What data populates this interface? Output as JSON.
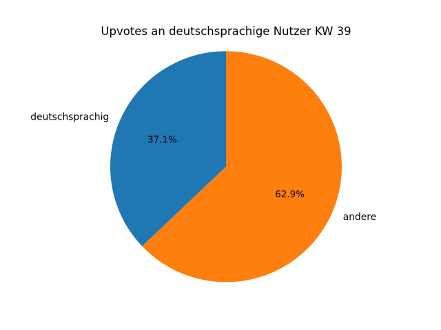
{
  "chart_data": {
    "type": "pie",
    "title": "Upvotes an deutschsprachige Nutzer KW 39",
    "categories": [
      "deutschsprachig",
      "andere"
    ],
    "values": [
      37.1,
      62.9
    ],
    "slices": [
      {
        "label": "deutschsprachig",
        "value": 37.1,
        "pct_label": "37.1%",
        "color": "#1f77b4"
      },
      {
        "label": "andere",
        "value": 62.9,
        "pct_label": "62.9%",
        "color": "#ff7f0e"
      }
    ],
    "start_angle": 90,
    "direction": "counterclockwise",
    "legend": "none",
    "background": "#ffffff"
  }
}
